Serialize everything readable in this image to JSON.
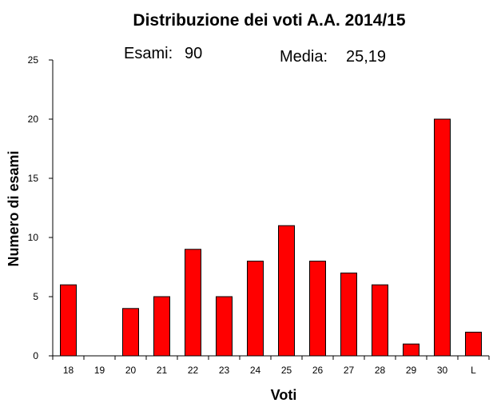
{
  "chart_data": {
    "type": "bar",
    "title": "Distribuzione dei voti A.A. 2014/15",
    "annotations": {
      "esami_label": "Esami:",
      "esami_value": "90",
      "media_label": "Media:",
      "media_value": "25,19"
    },
    "xlabel": "Voti",
    "ylabel": "Numero di esami",
    "categories": [
      "18",
      "19",
      "20",
      "21",
      "22",
      "23",
      "24",
      "25",
      "26",
      "27",
      "28",
      "29",
      "30",
      "L"
    ],
    "values": [
      6,
      0,
      4,
      5,
      9,
      5,
      8,
      11,
      8,
      7,
      6,
      1,
      20,
      2
    ],
    "ylim": [
      0,
      25
    ],
    "yticks": [
      0,
      5,
      10,
      15,
      20,
      25
    ],
    "bar_color": "#ff0000",
    "grid": false,
    "legend": "none"
  }
}
